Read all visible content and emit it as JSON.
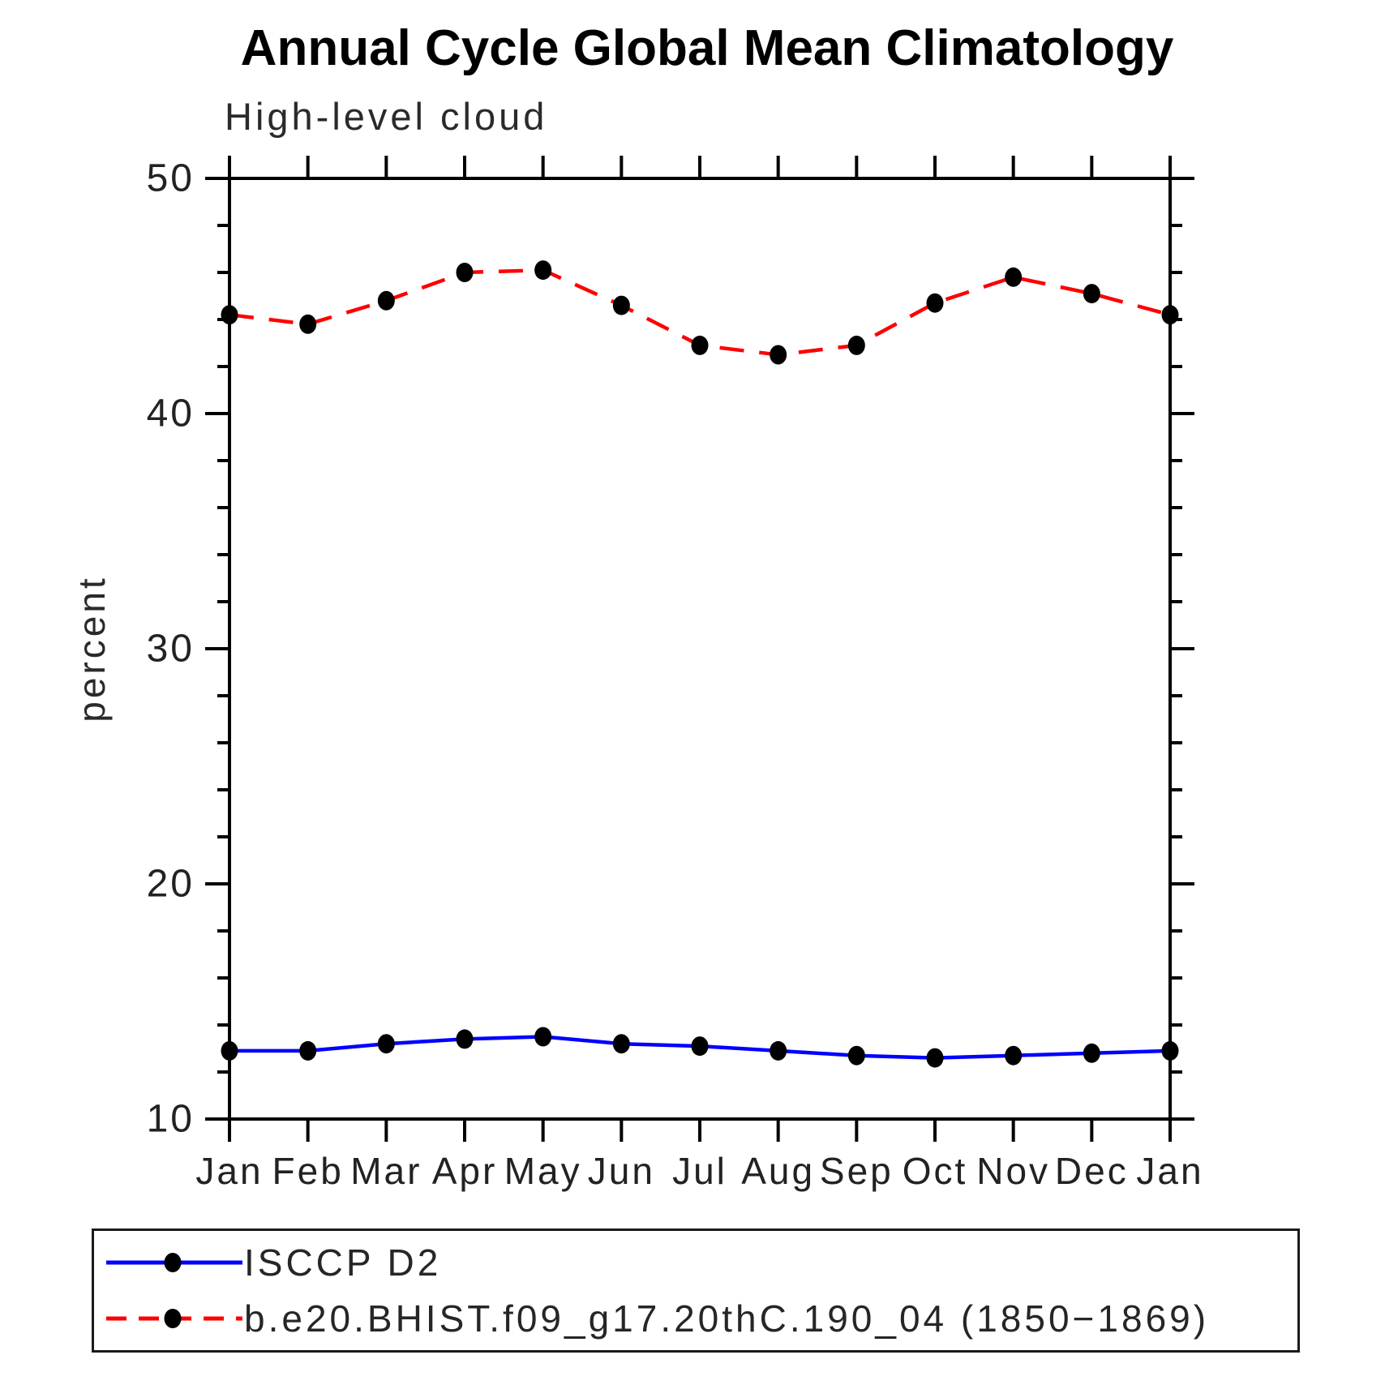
{
  "chart": {
    "title": "Annual Cycle Global Mean Climatology",
    "subtitle": "High-level cloud",
    "ylabel": "percent"
  },
  "chart_data": {
    "type": "line",
    "title": "Annual Cycle Global Mean Climatology",
    "subtitle": "High-level cloud",
    "xlabel": "",
    "ylabel": "percent",
    "categories": [
      "Jan",
      "Feb",
      "Mar",
      "Apr",
      "May",
      "Jun",
      "Jul",
      "Aug",
      "Sep",
      "Oct",
      "Nov",
      "Dec",
      "Jan"
    ],
    "ylim": [
      10,
      50
    ],
    "yticks_major": [
      10,
      20,
      30,
      40,
      50
    ],
    "ytick_minor_step": 2,
    "grid": false,
    "legend_position": "bottom-left-box",
    "frame_color": "#000000",
    "series": [
      {
        "name": "ISCCP D2",
        "color": "#0000ff",
        "line_style": "solid",
        "marker": "filled-circle",
        "marker_color": "#000000",
        "values": [
          12.9,
          12.9,
          13.2,
          13.4,
          13.5,
          13.2,
          13.1,
          12.9,
          12.7,
          12.6,
          12.7,
          12.8,
          12.9
        ]
      },
      {
        "name": "b.e20.BHIST.f09_g17.20thC.190_04 (1850−1869)",
        "color": "#ff0000",
        "line_style": "dashed",
        "marker": "filled-circle",
        "marker_color": "#000000",
        "values": [
          44.2,
          43.8,
          44.8,
          46.0,
          46.1,
          44.6,
          42.9,
          42.5,
          42.9,
          44.7,
          45.8,
          45.1,
          44.2
        ]
      }
    ]
  }
}
